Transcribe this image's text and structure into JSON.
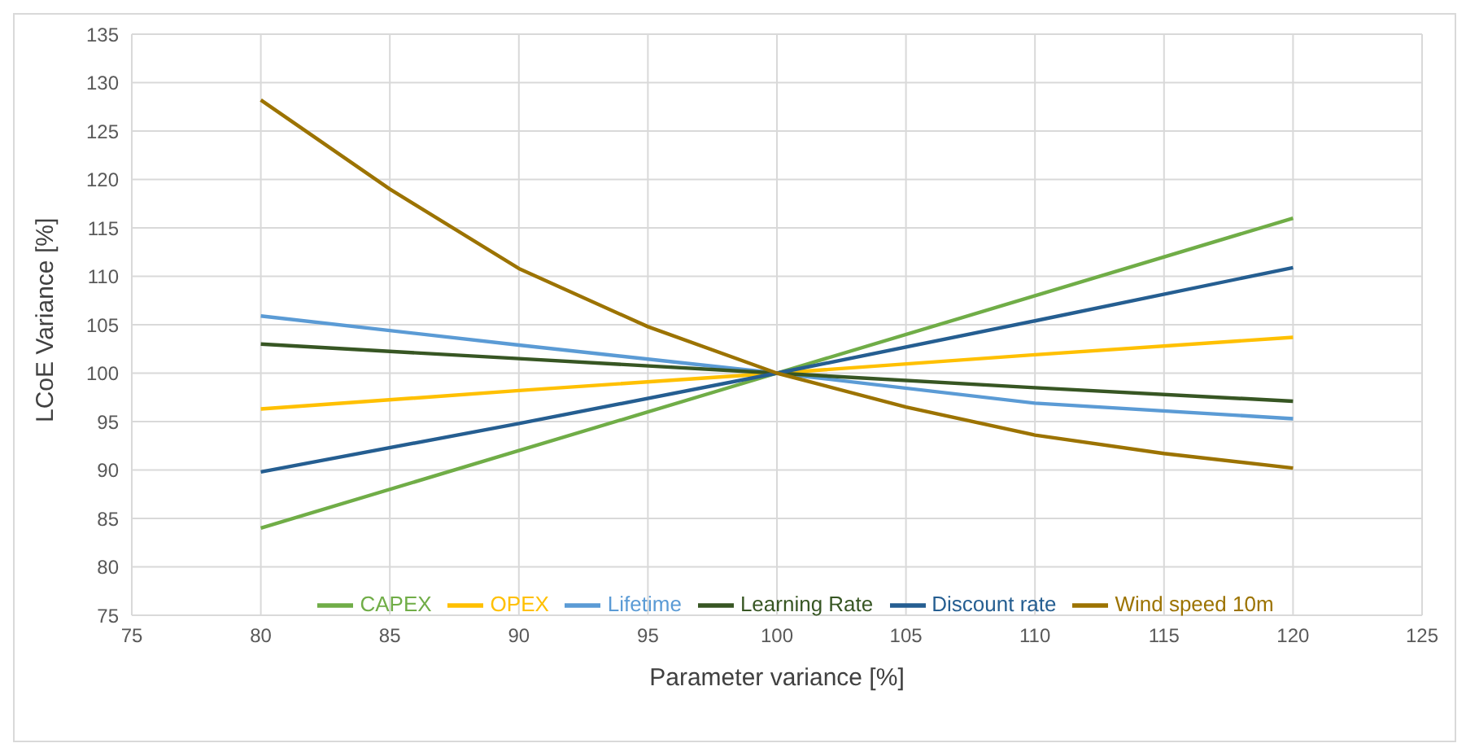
{
  "chart_data": {
    "type": "line",
    "xlabel": "Parameter variance [%]",
    "ylabel": "LCoE Variance [%]",
    "xlim": [
      75,
      125
    ],
    "xticks": [
      75,
      80,
      85,
      90,
      95,
      100,
      105,
      110,
      115,
      120,
      125
    ],
    "ylim": [
      75,
      135
    ],
    "yticks": [
      75,
      80,
      85,
      90,
      95,
      100,
      105,
      110,
      115,
      120,
      125,
      130,
      135
    ],
    "grid": true,
    "legend": "bottom",
    "marker": "none",
    "line_style": "solid",
    "series": [
      {
        "name": "CAPEX",
        "color": "#70ad47",
        "x": [
          80,
          90,
          100,
          110,
          120
        ],
        "values": [
          84,
          92,
          100,
          108,
          116
        ]
      },
      {
        "name": "OPEX",
        "color": "#ffc000",
        "x": [
          80,
          90,
          100,
          110,
          120
        ],
        "values": [
          96.3,
          98.2,
          100,
          101.9,
          103.7
        ]
      },
      {
        "name": "Lifetime",
        "color": "#5b9bd5",
        "x": [
          80,
          90,
          100,
          110,
          120
        ],
        "values": [
          105.9,
          102.9,
          100,
          96.9,
          95.3
        ]
      },
      {
        "name": "Learning Rate",
        "color": "#375623",
        "x": [
          80,
          90,
          100,
          110,
          120
        ],
        "values": [
          103,
          101.5,
          100,
          98.5,
          97.1
        ]
      },
      {
        "name": "Discount rate",
        "color": "#255e91",
        "x": [
          80,
          90,
          100,
          110,
          120
        ],
        "values": [
          89.8,
          94.8,
          100,
          105.4,
          110.9
        ]
      },
      {
        "name": "Wind speed 10m",
        "color": "#9c7300",
        "x": [
          80,
          85,
          90,
          95,
          100,
          105,
          110,
          115,
          120
        ],
        "values": [
          128.2,
          119,
          110.8,
          104.8,
          100,
          96.5,
          93.6,
          91.7,
          90.2
        ]
      }
    ]
  }
}
